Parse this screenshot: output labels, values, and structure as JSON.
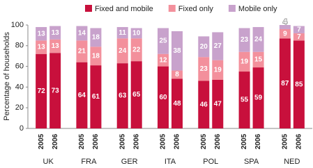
{
  "chart_data": {
    "type": "stacked_bar",
    "y_label": "Percentage of households",
    "groups": [
      "UK",
      "FRA",
      "GER",
      "ITA",
      "POL",
      "SPA",
      "NED"
    ],
    "categories": [
      "2005",
      "2006",
      "2005",
      "2006",
      "2005",
      "2006",
      "2005",
      "2006",
      "2005",
      "2006",
      "2005",
      "2006",
      "2005",
      "2006"
    ],
    "series": [
      {
        "name": "Fixed and mobile",
        "color": "#c8103c",
        "values": [
          72,
          73,
          64,
          61,
          63,
          65,
          60,
          48,
          46,
          47,
          55,
          59,
          87,
          85
        ]
      },
      {
        "name": "Fixed only",
        "color": "#f3909c",
        "values": [
          13,
          13,
          21,
          18,
          24,
          22,
          12,
          8,
          23,
          19,
          19,
          15,
          9,
          7
        ]
      },
      {
        "name": "Mobile only",
        "color": "#c8a2cc",
        "values": [
          13,
          13,
          14,
          18,
          11,
          10,
          25,
          38,
          20,
          27,
          23,
          24,
          4,
          7
        ]
      }
    ],
    "ylim": [
      0,
      100
    ],
    "yticks": [
      0,
      20,
      40,
      60,
      80,
      100
    ],
    "grid": false
  }
}
